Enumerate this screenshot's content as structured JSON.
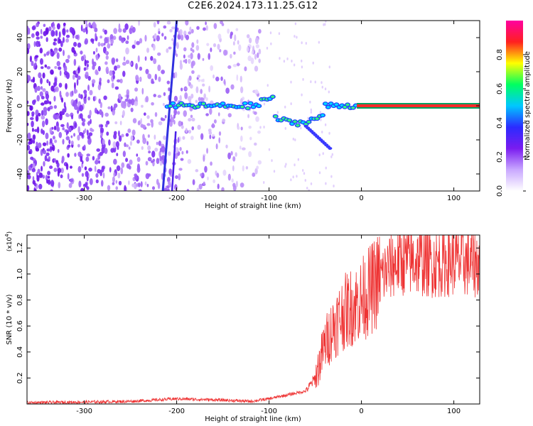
{
  "title": "C2E6.2024.173.11.25.G12",
  "chart_data": [
    {
      "type": "heatmap",
      "xlabel": "Height of straight line (km)",
      "ylabel": "Frequency (Hz)",
      "xlim": [
        -362,
        128
      ],
      "ylim": [
        -50,
        50
      ],
      "x_ticks": [
        -300,
        -200,
        -100,
        0,
        100
      ],
      "y_ticks": [
        -40,
        -20,
        0,
        20,
        40
      ],
      "colorbar": {
        "label": "Normalized spectral amplitude",
        "range": [
          0,
          1
        ],
        "ticks": [
          "0.0",
          "0.2",
          "0.4",
          "0.6",
          "0.8"
        ],
        "colors": [
          "#ffffff",
          "#c9a8ff",
          "#7a1cf0",
          "#2b2bff",
          "#00c8ff",
          "#00ff60",
          "#ffff00",
          "#ff2020",
          "#ff00a0"
        ]
      },
      "features": {
        "carrier_line": {
          "x_range": [
            -5,
            128
          ],
          "frequency": 0
        },
        "diagonal_trace": {
          "x_start": -215,
          "x_end": -200,
          "f_start": -50,
          "f_end": 50
        },
        "scatter_noise": {
          "x_range": [
            -362,
            -110
          ],
          "frequency_range": [
            -50,
            50
          ]
        }
      }
    },
    {
      "type": "line",
      "xlabel": "Height of straight line (km)",
      "ylabel": "SNR (10 * v/v)",
      "y_multiplier": "(x10",
      "y_multiplier_exp": "4",
      "y_multiplier_close": ")",
      "xlim": [
        -362,
        128
      ],
      "ylim": [
        0,
        1.3
      ],
      "x_ticks": [
        -300,
        -200,
        -100,
        0,
        100
      ],
      "y_ticks": [
        "0.2",
        "0.4",
        "0.6",
        "0.8",
        "1.0",
        "1.2"
      ],
      "color": "#ee3333",
      "x": [
        -362,
        -300,
        -250,
        -200,
        -150,
        -120,
        -100,
        -80,
        -60,
        -50,
        -40,
        -30,
        -20,
        -10,
        0,
        10,
        20,
        30,
        40,
        60,
        80,
        100,
        128
      ],
      "y": [
        0.01,
        0.015,
        0.02,
        0.04,
        0.03,
        0.02,
        0.04,
        0.07,
        0.1,
        0.2,
        0.45,
        0.6,
        0.7,
        0.75,
        0.8,
        0.88,
        0.97,
        1.05,
        1.1,
        1.1,
        1.08,
        1.1,
        1.08
      ]
    }
  ]
}
